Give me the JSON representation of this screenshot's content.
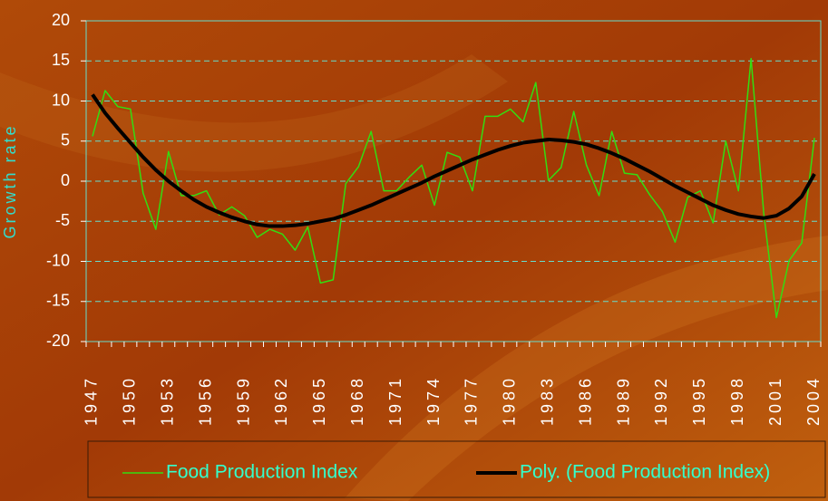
{
  "chart_data": {
    "type": "line",
    "y_label": "Growth rate",
    "categories": [
      "1947",
      null,
      null,
      "1950",
      null,
      null,
      "1953",
      null,
      null,
      "1956",
      null,
      null,
      "1959",
      null,
      null,
      "1962",
      null,
      null,
      "1965",
      null,
      null,
      "1968",
      null,
      null,
      "1971",
      null,
      null,
      "1974",
      null,
      null,
      "1977",
      null,
      null,
      "1980",
      null,
      null,
      "1983",
      null,
      null,
      "1986",
      null,
      null,
      "1989",
      null,
      null,
      "1992",
      null,
      null,
      "1995",
      null,
      null,
      "1998",
      null,
      null,
      "2001",
      null,
      null,
      "2004"
    ],
    "series": [
      {
        "name": "Food Production Index",
        "color": "#33dd11",
        "width": 1.5,
        "values": [
          5.6,
          11.3,
          9.3,
          9.0,
          -1.5,
          -6.0,
          3.7,
          -1.8,
          -1.8,
          -1.2,
          -4.2,
          -3.2,
          -4.3,
          -7.0,
          -6.0,
          -6.6,
          -8.6,
          -5.7,
          -12.7,
          -12.3,
          -0.3,
          1.8,
          6.2,
          -1.2,
          -1.2,
          0.5,
          2.0,
          -3.0,
          3.6,
          3.0,
          -1.2,
          8.1,
          8.1,
          9.0,
          7.4,
          12.3,
          0.1,
          1.7,
          8.7,
          2.0,
          -1.8,
          6.2,
          1.0,
          0.8,
          -1.7,
          -3.8,
          -7.6,
          -2.0,
          -1.2,
          -5.2,
          5.0,
          -1.2,
          15.3,
          -4.0,
          -17.0,
          -9.9,
          -7.7,
          5.4
        ]
      },
      {
        "name": "Poly. (Food Production Index)",
        "color": "#000000",
        "width": 4,
        "values": [
          10.8,
          8.5,
          6.6,
          4.8,
          3.0,
          1.4,
          0.0,
          -1.2,
          -2.3,
          -3.2,
          -3.9,
          -4.5,
          -5.0,
          -5.4,
          -5.6,
          -5.6,
          -5.5,
          -5.3,
          -5.0,
          -4.7,
          -4.2,
          -3.6,
          -3.0,
          -2.3,
          -1.6,
          -0.9,
          -0.2,
          0.6,
          1.3,
          2.0,
          2.7,
          3.3,
          3.9,
          4.4,
          4.8,
          5.0,
          5.2,
          5.1,
          4.9,
          4.6,
          4.1,
          3.5,
          2.8,
          2.0,
          1.2,
          0.3,
          -0.6,
          -1.4,
          -2.2,
          -3.0,
          -3.6,
          -4.1,
          -4.4,
          -4.6,
          -4.3,
          -3.4,
          -1.9,
          0.9
        ]
      }
    ],
    "ylim": [
      -20,
      20
    ],
    "yticks": [
      -20,
      -15,
      -10,
      -5,
      0,
      5,
      10,
      15,
      20
    ],
    "grid": true,
    "legend": "bottom"
  }
}
